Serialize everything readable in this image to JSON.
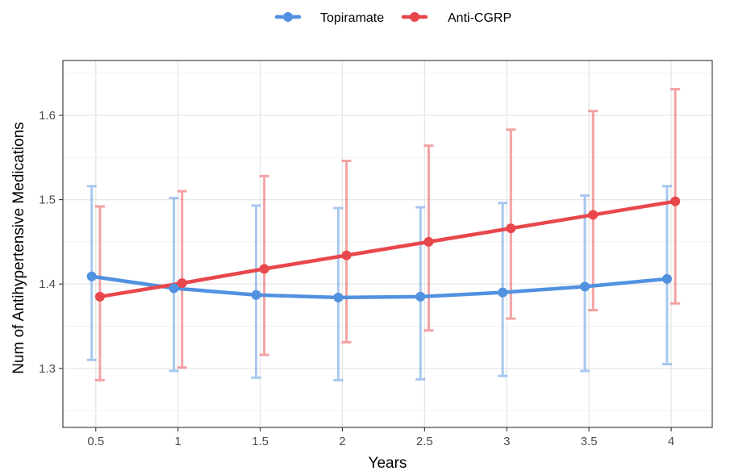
{
  "chart_data": {
    "type": "line",
    "title": "",
    "xlabel": "Years",
    "ylabel": "Num of Antihypertensive Medications",
    "x": [
      0.5,
      1,
      1.5,
      2,
      2.5,
      3,
      3.5,
      4
    ],
    "x_tick_labels": [
      "0.5",
      "1",
      "1.5",
      "2",
      "2.5",
      "3",
      "3.5",
      "4"
    ],
    "xlim": [
      0.3,
      4.25
    ],
    "ylim": [
      1.23,
      1.665
    ],
    "y_ticks": [
      1.3,
      1.4,
      1.5,
      1.6
    ],
    "y_tick_labels": [
      "1.3",
      "1.4",
      "1.5",
      "1.6"
    ],
    "grid": true,
    "legend_position": "top",
    "error_bars": true,
    "series": [
      {
        "name": "Topiramate",
        "color": "#5192e0",
        "values": [
          1.409,
          1.395,
          1.387,
          1.384,
          1.385,
          1.39,
          1.397,
          1.406
        ],
        "lower": [
          1.31,
          1.297,
          1.289,
          1.286,
          1.287,
          1.291,
          1.297,
          1.305
        ],
        "upper": [
          1.516,
          1.502,
          1.493,
          1.49,
          1.491,
          1.496,
          1.505,
          1.516
        ]
      },
      {
        "name": "Anti-CGRP",
        "color": "#e8474c",
        "values": [
          1.385,
          1.401,
          1.418,
          1.434,
          1.45,
          1.466,
          1.482,
          1.498
        ],
        "lower": [
          1.286,
          1.301,
          1.316,
          1.331,
          1.345,
          1.359,
          1.369,
          1.377
        ],
        "upper": [
          1.492,
          1.51,
          1.528,
          1.546,
          1.564,
          1.583,
          1.605,
          1.631
        ]
      }
    ]
  }
}
